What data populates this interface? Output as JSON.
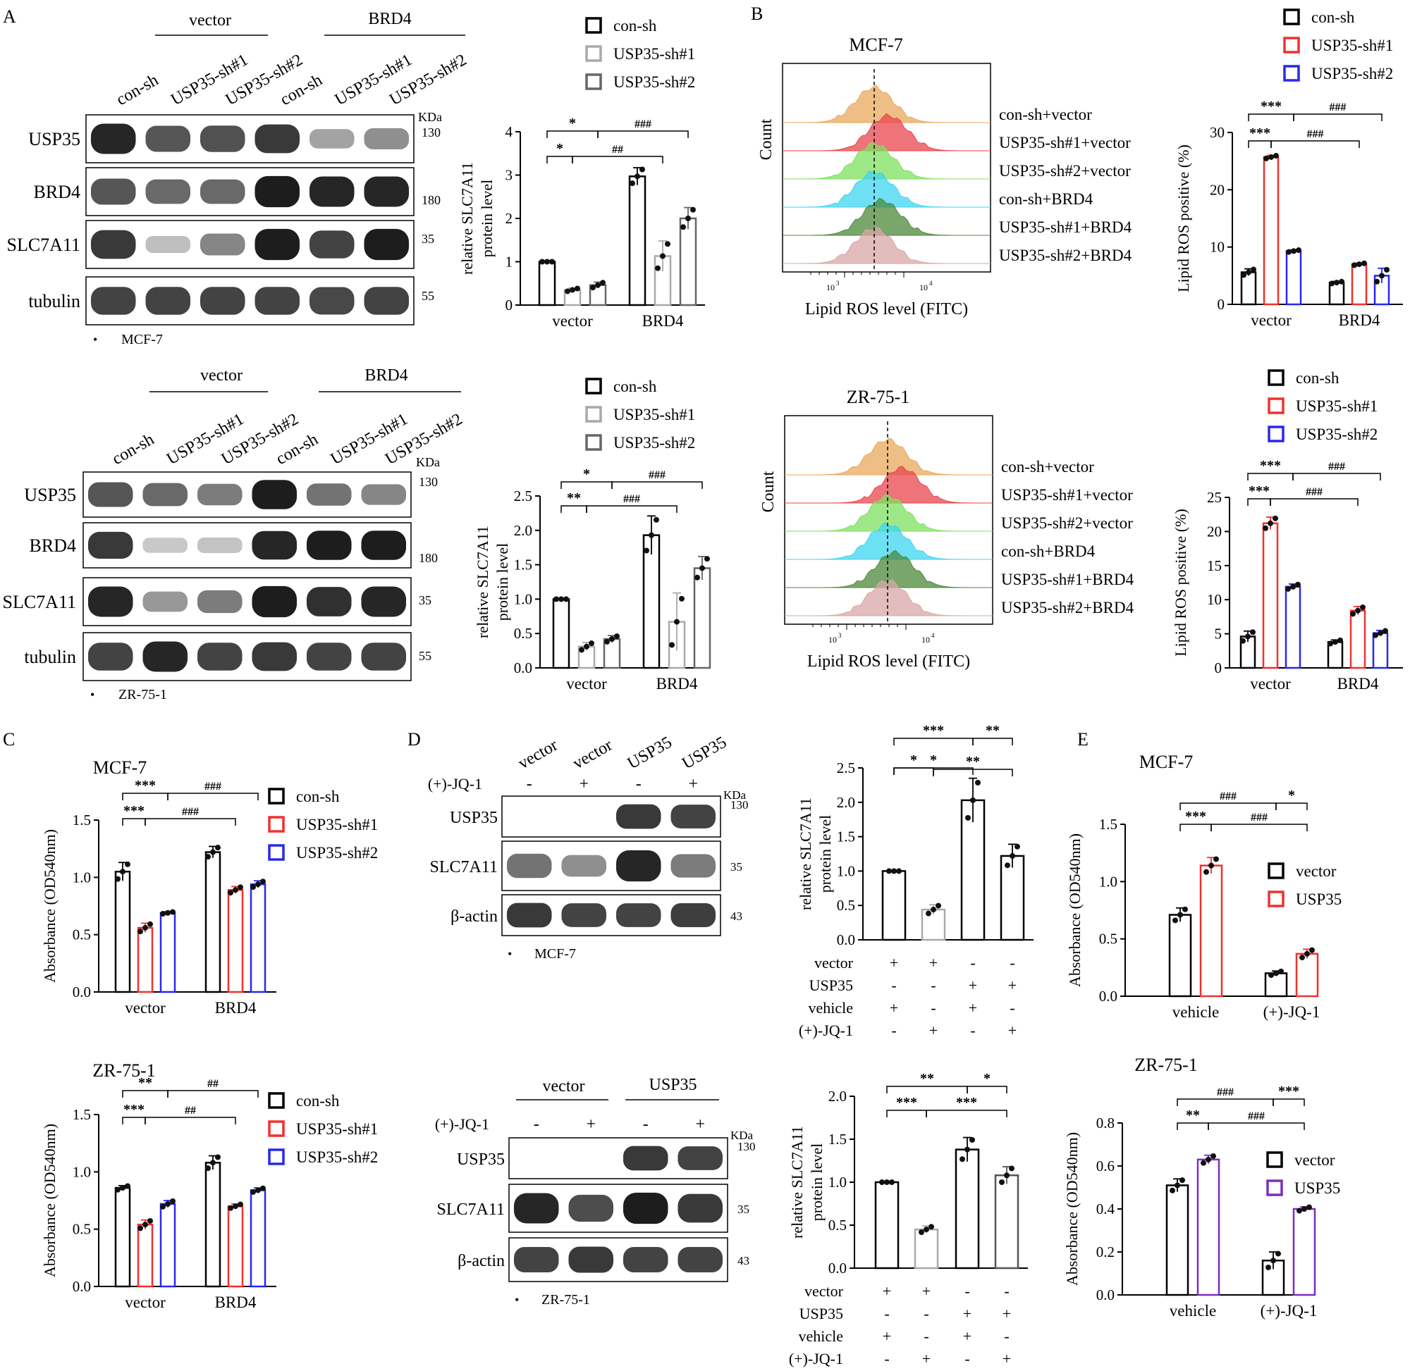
{
  "panel_letters": [
    "A",
    "B",
    "C",
    "D",
    "E"
  ],
  "kda": "KDa",
  "cells": {
    "mcf7": "MCF-7",
    "zr": "ZR-75-1"
  },
  "bullet": "•",
  "blotA": {
    "group_labels": [
      "vector",
      "BRD4"
    ],
    "lanes": [
      "con-sh",
      "USP35-sh#1",
      "USP35-sh#2",
      "con-sh",
      "USP35-sh#1",
      "USP35-sh#2"
    ],
    "proteins": [
      "USP35",
      "BRD4",
      "SLC7A11",
      "tubulin"
    ],
    "markers": [
      "130",
      "180",
      "35",
      "55"
    ]
  },
  "blotD": {
    "mcf7_lanes": [
      "vector",
      "vector",
      "USP35",
      "USP35"
    ],
    "zr_groups": [
      "vector",
      "USP35"
    ],
    "jq1_label": "(+)-JQ-1",
    "jq1_signs": [
      "-",
      "+",
      "-",
      "+"
    ],
    "proteins": [
      "USP35",
      "SLC7A11",
      "β-actin"
    ],
    "markers": [
      "130",
      "35",
      "43"
    ]
  },
  "flow": {
    "xlabel": "Lipid ROS level (FITC)",
    "ylabel": "Count",
    "tick_3": "10",
    "tick_4": "10",
    "exp_3": "3",
    "exp_4": "4",
    "samples": [
      "con-sh+vector",
      "USP35-sh#1+vector",
      "USP35-sh#2+vector",
      "con-sh+BRD4",
      "USP35-sh#1+BRD4",
      "USP35-sh#2+BRD4"
    ],
    "colors": [
      "#e9a85c",
      "#e8454e",
      "#7fe060",
      "#3dd5f0",
      "#4c8a3a",
      "#d9a7a7"
    ]
  },
  "sig": {
    "s1": "*",
    "s2": "**",
    "s3": "***",
    "h2": "##",
    "h3": "###"
  },
  "treat": {
    "row_labels": [
      "vector",
      "USP35",
      "vehicle",
      "(+)-JQ-1"
    ],
    "signs": [
      [
        "+",
        "+",
        "-",
        "-"
      ],
      [
        "-",
        "-",
        "+",
        "+"
      ],
      [
        "+",
        "-",
        "+",
        "-"
      ],
      [
        "-",
        "+",
        "-",
        "+"
      ]
    ]
  },
  "chart_data": [
    {
      "id": "A-MCF7",
      "type": "bar",
      "categories": [
        "vector",
        "BRD4"
      ],
      "ylabel": "relative SLC7A11 protein level",
      "ylim": [
        0,
        4
      ],
      "yticks": [
        "0",
        "1",
        "2",
        "3",
        "4"
      ],
      "series": [
        {
          "name": "con-sh",
          "values": [
            1.0,
            2.97
          ],
          "error": [
            0,
            0.2
          ]
        },
        {
          "name": "USP35-sh#1",
          "values": [
            0.35,
            1.13
          ],
          "error": [
            0.04,
            0.35
          ]
        },
        {
          "name": "USP35-sh#2",
          "values": [
            0.46,
            2.0
          ],
          "error": [
            0.07,
            0.25
          ]
        }
      ]
    },
    {
      "id": "A-ZR",
      "type": "bar",
      "categories": [
        "vector",
        "BRD4"
      ],
      "ylabel": "relative SLC7A11 protein level",
      "ylim": [
        0,
        2.5
      ],
      "yticks": [
        "0.0",
        "0.5",
        "1.0",
        "1.5",
        "2.0",
        "2.5"
      ],
      "series": [
        {
          "name": "con-sh",
          "values": [
            1.0,
            1.93
          ],
          "error": [
            0,
            0.28
          ]
        },
        {
          "name": "USP35-sh#1",
          "values": [
            0.31,
            0.67
          ],
          "error": [
            0.06,
            0.42
          ]
        },
        {
          "name": "USP35-sh#2",
          "values": [
            0.42,
            1.45
          ],
          "error": [
            0.05,
            0.17
          ]
        }
      ]
    },
    {
      "id": "B-MCF7",
      "type": "bar",
      "categories": [
        "vector",
        "BRD4"
      ],
      "ylabel": "Lipid ROS positive (%)",
      "ylim": [
        0,
        30
      ],
      "yticks": [
        "0",
        "10",
        "20",
        "30"
      ],
      "series": [
        {
          "name": "con-sh",
          "values": [
            5.6,
            3.8
          ],
          "error": [
            0.6,
            0.2
          ]
        },
        {
          "name": "USP35-sh#1",
          "values": [
            25.7,
            7.0
          ],
          "error": [
            0.3,
            0.2
          ]
        },
        {
          "name": "USP35-sh#2",
          "values": [
            9.3,
            5.0
          ],
          "error": [
            0.2,
            1.3
          ]
        }
      ]
    },
    {
      "id": "B-ZR",
      "type": "bar",
      "categories": [
        "vector",
        "BRD4"
      ],
      "ylabel": "Lipid ROS positive (%)",
      "ylim": [
        0,
        25
      ],
      "yticks": [
        "0",
        "5",
        "10",
        "15",
        "20",
        "25"
      ],
      "series": [
        {
          "name": "con-sh",
          "values": [
            4.6,
            3.8
          ],
          "error": [
            0.8,
            0.3
          ]
        },
        {
          "name": "USP35-sh#1",
          "values": [
            21.2,
            8.4
          ],
          "error": [
            0.9,
            0.6
          ]
        },
        {
          "name": "USP35-sh#2",
          "values": [
            11.9,
            5.1
          ],
          "error": [
            0.4,
            0.4
          ]
        }
      ]
    },
    {
      "id": "C-MCF7",
      "type": "bar",
      "categories": [
        "vector",
        "BRD4"
      ],
      "ylabel": "Absorbance (OD540nm)",
      "ylim": [
        0,
        1.5
      ],
      "yticks": [
        "0.0",
        "0.5",
        "1.0",
        "1.5"
      ],
      "series": [
        {
          "name": "con-sh",
          "values": [
            1.05,
            1.22
          ],
          "error": [
            0.08,
            0.05
          ]
        },
        {
          "name": "USP35-sh#1",
          "values": [
            0.56,
            0.89
          ],
          "error": [
            0.04,
            0.03
          ]
        },
        {
          "name": "USP35-sh#2",
          "values": [
            0.69,
            0.94
          ],
          "error": [
            0.01,
            0.03
          ]
        }
      ]
    },
    {
      "id": "C-ZR",
      "type": "bar",
      "categories": [
        "vector",
        "BRD4"
      ],
      "ylabel": "Absorbance (OD540nm)",
      "ylim": [
        0,
        1.5
      ],
      "yticks": [
        "0.0",
        "0.5",
        "1.0",
        "1.5"
      ],
      "series": [
        {
          "name": "con-sh",
          "values": [
            0.86,
            1.08
          ],
          "error": [
            0.02,
            0.06
          ]
        },
        {
          "name": "USP35-sh#1",
          "values": [
            0.54,
            0.7
          ],
          "error": [
            0.04,
            0.02
          ]
        },
        {
          "name": "USP35-sh#2",
          "values": [
            0.72,
            0.84
          ],
          "error": [
            0.03,
            0.02
          ]
        }
      ]
    },
    {
      "id": "D-MCF7",
      "type": "bar",
      "ylabel": "relative SLC7A11 protein level",
      "ylim": [
        0,
        2.5
      ],
      "yticks": [
        "0.0",
        "0.5",
        "1.0",
        "1.5",
        "2.0",
        "2.5"
      ],
      "values": [
        1.0,
        0.44,
        2.03,
        1.22
      ],
      "error": [
        0,
        0.07,
        0.32,
        0.17
      ]
    },
    {
      "id": "D-ZR",
      "type": "bar",
      "ylabel": "relative SLC7A11 protein level",
      "ylim": [
        0,
        2.0
      ],
      "yticks": [
        "0.0",
        "0.5",
        "1.0",
        "1.5",
        "2.0"
      ],
      "values": [
        1.0,
        0.45,
        1.38,
        1.08
      ],
      "error": [
        0,
        0.04,
        0.14,
        0.1
      ]
    },
    {
      "id": "E-MCF7",
      "type": "bar",
      "categories": [
        "vehicle",
        "(+)-JQ-1"
      ],
      "ylabel": "Absorbance (OD540nm)",
      "ylim": [
        0,
        1.5
      ],
      "yticks": [
        "0.0",
        "0.5",
        "1.0",
        "1.5"
      ],
      "series": [
        {
          "name": "vector",
          "values": [
            0.71,
            0.2
          ],
          "error": [
            0.06,
            0.02
          ]
        },
        {
          "name": "USP35",
          "values": [
            1.14,
            0.37
          ],
          "error": [
            0.07,
            0.04
          ]
        }
      ]
    },
    {
      "id": "E-ZR",
      "type": "bar",
      "categories": [
        "vehicle",
        "(+)-JQ-1"
      ],
      "ylabel": "Absorbance (OD540nm)",
      "ylim": [
        0,
        0.8
      ],
      "yticks": [
        "0.0",
        "0.2",
        "0.4",
        "0.6",
        "0.8"
      ],
      "series": [
        {
          "name": "vector",
          "values": [
            0.51,
            0.16
          ],
          "error": [
            0.03,
            0.04
          ]
        },
        {
          "name": "USP35",
          "values": [
            0.63,
            0.4
          ],
          "error": [
            0.02,
            0.01
          ]
        }
      ]
    }
  ]
}
